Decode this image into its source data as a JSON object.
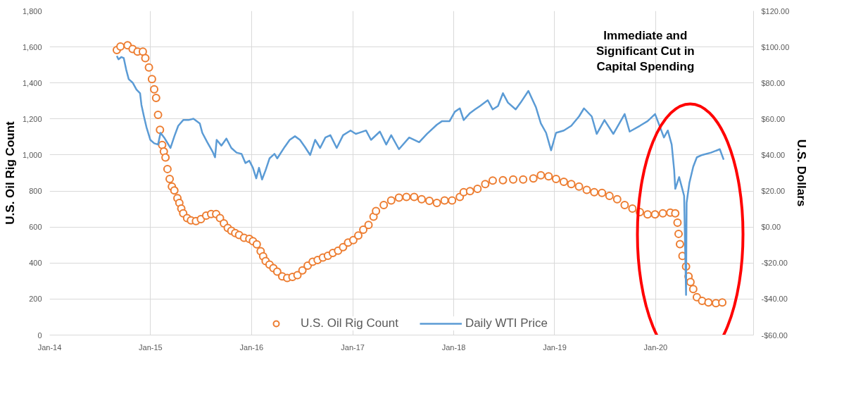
{
  "chart_data": {
    "type": "line",
    "legend": "bottom",
    "grid": true,
    "ylabel": "U.S. Oil Rig Count",
    "y2label": "U.S. Dollars",
    "annotations": [
      "Immediate and\nSignificant Cut in\nCapital Spending"
    ],
    "xlim": [
      "2014-01-01",
      "2020-12-20"
    ],
    "xticks": [
      {
        "value": "2014-01-01",
        "label": "Jan-14"
      },
      {
        "value": "2015-01-01",
        "label": "Jan-15"
      },
      {
        "value": "2016-01-01",
        "label": "Jan-16"
      },
      {
        "value": "2017-01-01",
        "label": "Jan-17"
      },
      {
        "value": "2018-01-01",
        "label": "Jan-18"
      },
      {
        "value": "2019-01-01",
        "label": "Jan-19"
      },
      {
        "value": "2020-01-01",
        "label": "Jan-20"
      }
    ],
    "ylim": [
      0,
      1800
    ],
    "yticks": [
      0,
      200,
      400,
      600,
      800,
      {
        "value": 1000,
        "label": "1,000"
      },
      {
        "value": 1200,
        "label": "1,200"
      },
      {
        "value": 1400,
        "label": "1,400"
      },
      {
        "value": 1600,
        "label": "1,600"
      },
      {
        "value": 1800,
        "label": "1,800"
      }
    ],
    "y2lim": [
      -60,
      120
    ],
    "y2ticks": [
      {
        "value": -60,
        "label": "-$60.00"
      },
      {
        "value": -40,
        "label": "-$40.00"
      },
      {
        "value": -20,
        "label": "-$20.00"
      },
      {
        "value": 0,
        "label": "$0.00"
      },
      {
        "value": 20,
        "label": "$20.00"
      },
      {
        "value": 40,
        "label": "$40.00"
      },
      {
        "value": 60,
        "label": "$60.00"
      },
      {
        "value": 80,
        "label": "$80.00"
      },
      {
        "value": 100,
        "label": "$100.00"
      },
      {
        "value": 120,
        "label": "$120.00"
      }
    ],
    "series": [
      {
        "name": "U.S. Oil Rig Count",
        "type": "scatter",
        "marker": "circle",
        "color": "#ed7d31",
        "x": [
          "2014-09-01",
          "2014-09-14",
          "2014-10-10",
          "2014-10-28",
          "2014-11-15",
          "2014-12-04",
          "2014-12-13",
          "2014-12-26",
          "2015-01-06",
          "2015-01-14",
          "2015-01-21",
          "2015-01-28",
          "2015-02-04",
          "2015-02-12",
          "2015-02-18",
          "2015-02-24",
          "2015-03-03",
          "2015-03-11",
          "2015-03-19",
          "2015-03-28",
          "2015-04-08",
          "2015-04-15",
          "2015-04-22",
          "2015-04-29",
          "2015-05-13",
          "2015-05-27",
          "2015-06-14",
          "2015-07-02",
          "2015-07-21",
          "2015-08-08",
          "2015-08-26",
          "2015-09-09",
          "2015-09-23",
          "2015-10-07",
          "2015-10-20",
          "2015-11-03",
          "2015-11-17",
          "2015-12-05",
          "2015-12-24",
          "2016-01-06",
          "2016-01-20",
          "2016-02-03",
          "2016-02-12",
          "2016-02-21",
          "2016-03-06",
          "2016-03-20",
          "2016-04-03",
          "2016-04-21",
          "2016-05-09",
          "2016-05-28",
          "2016-06-15",
          "2016-07-03",
          "2016-07-22",
          "2016-08-09",
          "2016-08-27",
          "2016-09-15",
          "2016-10-03",
          "2016-10-21",
          "2016-11-09",
          "2016-11-27",
          "2016-12-15",
          "2017-01-03",
          "2017-01-21",
          "2017-02-08",
          "2017-02-27",
          "2017-03-17",
          "2017-03-26",
          "2017-04-23",
          "2017-05-20",
          "2017-06-17",
          "2017-07-14",
          "2017-08-11",
          "2017-09-07",
          "2017-10-05",
          "2017-11-01",
          "2017-11-29",
          "2017-12-26",
          "2018-01-23",
          "2018-02-06",
          "2018-03-01",
          "2018-03-28",
          "2018-04-25",
          "2018-05-22",
          "2018-06-28",
          "2018-08-04",
          "2018-09-09",
          "2018-10-16",
          "2018-11-12",
          "2018-12-10",
          "2019-01-06",
          "2019-02-03",
          "2019-03-02",
          "2019-03-30",
          "2019-04-27",
          "2019-05-24",
          "2019-06-21",
          "2019-07-18",
          "2019-08-15",
          "2019-09-11",
          "2019-10-09",
          "2019-11-05",
          "2019-12-03",
          "2019-12-30",
          "2020-01-27",
          "2020-02-23",
          "2020-03-12",
          "2020-03-20",
          "2020-03-24",
          "2020-03-29",
          "2020-04-07",
          "2020-04-20",
          "2020-04-29",
          "2020-05-06",
          "2020-05-16",
          "2020-05-29",
          "2020-06-17",
          "2020-07-10",
          "2020-08-06",
          "2020-08-29"
        ],
        "values": [
          1583,
          1602,
          1609,
          1589,
          1574,
          1574,
          1538,
          1486,
          1421,
          1365,
          1317,
          1223,
          1140,
          1056,
          1019,
          986,
          922,
          867,
          825,
          803,
          760,
          734,
          702,
          676,
          650,
          637,
          633,
          644,
          663,
          672,
          672,
          650,
          620,
          595,
          579,
          566,
          556,
          540,
          534,
          521,
          504,
          466,
          437,
          411,
          391,
          372,
          352,
          326,
          317,
          323,
          333,
          359,
          385,
          407,
          417,
          430,
          440,
          456,
          469,
          488,
          514,
          527,
          553,
          585,
          611,
          657,
          689,
          722,
          747,
          763,
          767,
          767,
          754,
          745,
          734,
          747,
          747,
          767,
          793,
          799,
          812,
          838,
          858,
          860,
          864,
          864,
          870,
          887,
          881,
          867,
          851,
          838,
          825,
          806,
          793,
          789,
          773,
          754,
          722,
          702,
          683,
          670,
          670,
          676,
          680,
          676,
          624,
          562,
          505,
          439,
          381,
          326,
          294,
          255,
          210,
          190,
          181,
          177,
          181
        ]
      },
      {
        "name": "Daily WTI Price",
        "type": "line",
        "axis": "y2",
        "color": "#5b9bd5",
        "x": [
          "2014-09-01",
          "2014-09-07",
          "2014-09-17",
          "2014-09-26",
          "2014-10-05",
          "2014-10-14",
          "2014-10-28",
          "2014-11-11",
          "2014-11-24",
          "2014-11-29",
          "2014-12-08",
          "2014-12-17",
          "2014-12-31",
          "2015-01-14",
          "2015-01-28",
          "2015-02-06",
          "2015-02-19",
          "2015-03-14",
          "2015-03-28",
          "2015-04-11",
          "2015-04-29",
          "2015-05-18",
          "2015-06-05",
          "2015-06-28",
          "2015-07-07",
          "2015-07-25",
          "2015-08-13",
          "2015-08-22",
          "2015-08-28",
          "2015-09-14",
          "2015-10-02",
          "2015-10-20",
          "2015-11-08",
          "2015-11-26",
          "2015-12-10",
          "2015-12-24",
          "2016-01-06",
          "2016-01-18",
          "2016-01-28",
          "2016-02-08",
          "2016-02-21",
          "2016-03-06",
          "2016-03-24",
          "2016-04-03",
          "2016-04-30",
          "2016-05-18",
          "2016-06-06",
          "2016-06-24",
          "2016-07-12",
          "2016-07-31",
          "2016-08-18",
          "2016-09-05",
          "2016-09-24",
          "2016-10-12",
          "2016-11-04",
          "2016-11-27",
          "2016-12-24",
          "2017-01-12",
          "2017-02-18",
          "2017-03-08",
          "2017-04-09",
          "2017-05-02",
          "2017-05-20",
          "2017-06-17",
          "2017-07-24",
          "2017-08-29",
          "2017-09-26",
          "2017-11-01",
          "2017-11-20",
          "2017-12-17",
          "2018-01-05",
          "2018-01-23",
          "2018-02-06",
          "2018-03-01",
          "2018-03-19",
          "2018-04-06",
          "2018-05-04",
          "2018-05-22",
          "2018-06-10",
          "2018-06-28",
          "2018-07-16",
          "2018-08-13",
          "2018-08-31",
          "2018-09-28",
          "2018-10-25",
          "2018-11-12",
          "2018-12-01",
          "2018-12-19",
          "2019-01-06",
          "2019-02-03",
          "2019-03-02",
          "2019-03-30",
          "2019-04-17",
          "2019-05-15",
          "2019-06-02",
          "2019-06-30",
          "2019-08-01",
          "2019-09-11",
          "2019-09-29",
          "2019-11-05",
          "2019-12-03",
          "2019-12-30",
          "2020-01-17",
          "2020-01-31",
          "2020-02-14",
          "2020-02-28",
          "2020-03-08",
          "2020-03-12",
          "2020-03-26",
          "2020-04-04",
          "2020-04-13",
          "2020-04-20",
          "2020-04-22",
          "2020-05-02",
          "2020-05-16",
          "2020-05-29",
          "2020-06-17",
          "2020-07-19",
          "2020-08-20",
          "2020-09-03"
        ],
        "values": [
          95.0,
          93.1,
          94.4,
          93.8,
          87.3,
          82.1,
          80.2,
          76.3,
          74.3,
          67.8,
          61.4,
          55.5,
          48.4,
          46.5,
          45.8,
          52.3,
          49.7,
          43.9,
          50.4,
          56.2,
          59.4,
          59.4,
          60.1,
          57.5,
          52.3,
          47.1,
          41.9,
          38.7,
          48.4,
          45.2,
          49.1,
          43.9,
          41.3,
          40.6,
          35.5,
          36.8,
          32.9,
          27.0,
          32.9,
          26.4,
          31.6,
          38.1,
          40.6,
          38.1,
          44.5,
          48.4,
          50.4,
          48.4,
          44.5,
          40.0,
          48.4,
          43.9,
          49.7,
          51.0,
          43.9,
          51.0,
          53.6,
          51.7,
          53.6,
          48.4,
          53.0,
          45.8,
          51.0,
          43.2,
          49.7,
          47.1,
          51.7,
          56.8,
          58.8,
          58.8,
          64.0,
          65.9,
          59.4,
          63.3,
          65.3,
          67.2,
          70.4,
          65.3,
          67.2,
          74.3,
          69.1,
          65.3,
          69.1,
          75.6,
          66.6,
          57.5,
          52.3,
          42.6,
          52.3,
          53.6,
          56.2,
          61.4,
          65.9,
          61.4,
          51.7,
          59.4,
          51.7,
          62.7,
          53.0,
          56.2,
          58.8,
          62.7,
          55.5,
          49.7,
          53.6,
          45.8,
          31.6,
          21.2,
          27.7,
          22.5,
          17.3,
          -37.7,
          13.4,
          24.5,
          33.5,
          38.7,
          40.0,
          41.3,
          43.2,
          37.4
        ]
      }
    ]
  }
}
